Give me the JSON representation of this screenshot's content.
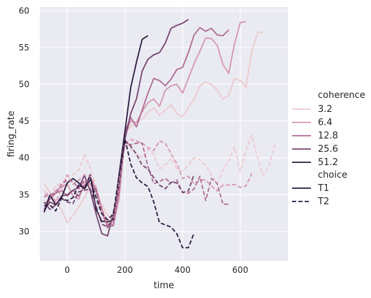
{
  "chart_data": {
    "type": "line",
    "xlabel": "time",
    "ylabel": "firing_rate",
    "xlim": [
      -95,
      765
    ],
    "ylim": [
      26.0,
      60.5
    ],
    "xticks": [
      "0",
      "200",
      "400",
      "600"
    ],
    "xtick_values": [
      0,
      200,
      400,
      600
    ],
    "yticks": [
      "30",
      "35",
      "40",
      "45",
      "50",
      "55",
      "60"
    ],
    "ytick_values": [
      30,
      35,
      40,
      45,
      50,
      55,
      60
    ],
    "grid": true,
    "legend_placement": "right-outside",
    "legend": {
      "hue_title": "coherence",
      "hue_entries": [
        {
          "label": "3.2",
          "color": "#ecc9cd"
        },
        {
          "label": "6.4",
          "color": "#d696ac"
        },
        {
          "label": "12.8",
          "color": "#b06a94"
        },
        {
          "label": "25.6",
          "color": "#754470"
        },
        {
          "label": "51.2",
          "color": "#2a1a3e"
        }
      ],
      "style_title": "choice",
      "style_entries": [
        {
          "label": "T1",
          "dash": "solid"
        },
        {
          "label": "T2",
          "dash": "dashed"
        }
      ]
    },
    "series": [
      {
        "coherence": "3.2",
        "choice": "T1",
        "color": "#ecc9cd",
        "dash": "solid",
        "x": [
          -80,
          -60,
          -40,
          -20,
          0,
          20,
          40,
          60,
          80,
          100,
          120,
          140,
          160,
          180,
          200,
          220,
          240,
          260,
          280,
          300,
          320,
          340,
          360,
          380,
          400,
          420,
          440,
          460,
          480,
          500,
          520,
          540,
          560,
          580,
          600,
          620,
          640,
          660,
          680
        ],
        "y": [
          36.5,
          35.3,
          34.2,
          33.0,
          31.2,
          32.2,
          33.3,
          34.6,
          36.2,
          35.3,
          33.6,
          32.2,
          31.5,
          36.5,
          43.5,
          44.2,
          44.8,
          45.3,
          46.2,
          46.8,
          45.8,
          46.5,
          47.2,
          46.0,
          45.6,
          46.8,
          48.0,
          49.8,
          50.3,
          50.0,
          49.2,
          48.0,
          48.5,
          50.8,
          50.5,
          49.6,
          54.5,
          57.0,
          57.1
        ]
      },
      {
        "coherence": "6.4",
        "choice": "T1",
        "color": "#d696ac",
        "dash": "solid",
        "x": [
          -80,
          -60,
          -40,
          -20,
          0,
          20,
          40,
          60,
          80,
          100,
          120,
          140,
          160,
          180,
          200,
          220,
          240,
          260,
          280,
          300,
          320,
          340,
          360,
          380,
          400,
          420,
          440,
          460,
          480,
          500,
          520,
          540,
          560,
          580,
          600,
          620
        ],
        "y": [
          33.7,
          34.5,
          35.6,
          36.0,
          36.5,
          34.8,
          34.4,
          36.8,
          36.4,
          35.6,
          33.0,
          31.0,
          30.9,
          34.5,
          43.0,
          45.0,
          44.8,
          46.3,
          47.5,
          48.0,
          47.0,
          49.2,
          49.8,
          50.0,
          48.8,
          50.8,
          52.8,
          54.5,
          56.3,
          56.2,
          55.3,
          52.7,
          51.5,
          55.5,
          58.4,
          58.5
        ]
      },
      {
        "coherence": "12.8",
        "choice": "T1",
        "color": "#b06a94",
        "dash": "solid",
        "x": [
          -80,
          -60,
          -40,
          -20,
          0,
          20,
          40,
          60,
          80,
          100,
          120,
          140,
          160,
          180,
          200,
          220,
          240,
          260,
          280,
          300,
          320,
          340,
          360,
          380,
          400,
          420,
          440,
          460,
          480,
          500,
          520,
          540,
          560
        ],
        "y": [
          33.0,
          34.4,
          35.2,
          35.6,
          34.8,
          35.6,
          34.8,
          36.2,
          37.4,
          35.4,
          32.6,
          30.6,
          30.8,
          35.6,
          43.5,
          45.5,
          44.2,
          46.5,
          48.8,
          50.8,
          50.5,
          49.8,
          50.7,
          52.0,
          52.3,
          54.3,
          56.7,
          57.7,
          57.2,
          57.6,
          56.7,
          56.6,
          57.4
        ]
      },
      {
        "coherence": "25.6",
        "choice": "T1",
        "color": "#754470",
        "dash": "solid",
        "x": [
          -80,
          -60,
          -40,
          -20,
          0,
          20,
          40,
          60,
          80,
          100,
          120,
          140,
          160,
          180,
          200,
          220,
          240,
          260,
          280,
          300,
          320,
          340,
          360,
          380,
          400,
          420
        ],
        "y": [
          32.8,
          34.0,
          33.6,
          34.8,
          35.0,
          35.6,
          36.0,
          37.6,
          35.5,
          32.4,
          29.7,
          29.4,
          32.6,
          36.5,
          42.5,
          46.0,
          48.0,
          51.8,
          53.4,
          54.0,
          54.3,
          55.6,
          57.6,
          58.0,
          58.3,
          58.8
        ]
      },
      {
        "coherence": "51.2",
        "choice": "T1",
        "color": "#2a1a3e",
        "dash": "solid",
        "x": [
          -80,
          -60,
          -40,
          -20,
          0,
          20,
          40,
          60,
          80,
          100,
          120,
          140,
          160,
          180,
          200,
          220,
          240,
          260,
          280
        ],
        "y": [
          32.6,
          35.0,
          33.6,
          34.6,
          36.6,
          37.2,
          36.6,
          35.8,
          37.7,
          33.0,
          31.4,
          31.3,
          31.6,
          37.8,
          43.6,
          49.5,
          53.0,
          56.1,
          56.6
        ]
      },
      {
        "coherence": "3.2",
        "choice": "T2",
        "color": "#ecc9cd",
        "dash": "dashed",
        "x": [
          -80,
          -60,
          -40,
          -20,
          0,
          20,
          40,
          60,
          80,
          100,
          120,
          140,
          160,
          180,
          200,
          220,
          240,
          260,
          280,
          300,
          320,
          340,
          360,
          380,
          400,
          420,
          440,
          460,
          480,
          500,
          520,
          540,
          560,
          580,
          600,
          620,
          640,
          660,
          680,
          700,
          720
        ],
        "y": [
          35.5,
          35.0,
          36.2,
          36.5,
          37.4,
          37.7,
          38.3,
          40.5,
          38.6,
          36.0,
          32.8,
          31.5,
          32.4,
          37.0,
          42.5,
          41.2,
          40.6,
          40.0,
          41.2,
          40.5,
          38.5,
          39.0,
          40.0,
          38.5,
          38.2,
          39.0,
          40.0,
          39.8,
          39.0,
          37.6,
          36.5,
          38.4,
          39.6,
          41.5,
          38.2,
          41.0,
          43.1,
          40.0,
          37.6,
          39.0,
          41.8
        ]
      },
      {
        "coherence": "6.4",
        "choice": "T2",
        "color": "#d696ac",
        "dash": "dashed",
        "x": [
          -80,
          -60,
          -40,
          -20,
          0,
          20,
          40,
          60,
          80,
          100,
          120,
          140,
          160,
          180,
          200,
          220,
          240,
          260,
          280,
          300,
          320,
          340,
          360,
          380,
          400,
          420,
          440,
          460,
          480,
          500,
          520,
          540,
          560,
          580,
          600,
          620,
          640
        ],
        "y": [
          35.0,
          35.2,
          34.0,
          35.8,
          37.7,
          36.4,
          37.0,
          37.7,
          37.5,
          36.0,
          33.2,
          30.5,
          31.4,
          36.2,
          42.0,
          42.5,
          42.3,
          42.0,
          41.4,
          41.0,
          42.3,
          42.0,
          40.6,
          39.2,
          37.2,
          37.5,
          36.5,
          37.0,
          37.0,
          36.2,
          35.5,
          36.3,
          36.3,
          36.4,
          36.0,
          36.2,
          37.9
        ]
      },
      {
        "coherence": "12.8",
        "choice": "T2",
        "color": "#b06a94",
        "dash": "dashed",
        "x": [
          -80,
          -60,
          -40,
          -20,
          0,
          20,
          40,
          60,
          80,
          100,
          120,
          140,
          160,
          180,
          200,
          220,
          240,
          260,
          280,
          300,
          320,
          340,
          360,
          380,
          400,
          420,
          440,
          460,
          480,
          500,
          520,
          540,
          560
        ],
        "y": [
          34.7,
          35.0,
          35.2,
          36.4,
          37.0,
          36.8,
          35.8,
          37.0,
          36.6,
          35.8,
          33.0,
          30.5,
          32.2,
          36.2,
          42.0,
          41.8,
          42.0,
          42.0,
          38.8,
          36.5,
          36.8,
          37.2,
          36.6,
          37.0,
          35.3,
          35.2,
          35.8,
          37.5,
          34.2,
          37.2,
          36.5,
          33.7,
          33.7
        ]
      },
      {
        "coherence": "25.6",
        "choice": "T2",
        "color": "#754470",
        "dash": "dashed",
        "x": [
          -80,
          -60,
          -40,
          -20,
          0,
          20,
          40,
          60,
          80,
          100,
          120,
          140,
          160,
          180,
          200,
          220,
          240,
          260,
          280,
          300,
          320,
          340,
          360,
          380,
          400,
          420,
          440
        ],
        "y": [
          34.0,
          33.0,
          33.6,
          34.5,
          34.0,
          33.8,
          35.4,
          35.6,
          35.8,
          33.5,
          31.0,
          30.6,
          32.0,
          36.4,
          42.3,
          41.6,
          40.5,
          39.0,
          38.5,
          37.3,
          36.3,
          35.8,
          36.7,
          36.6,
          35.3,
          35.5,
          37.8
        ]
      },
      {
        "coherence": "51.2",
        "choice": "T2",
        "color": "#2a1a3e",
        "dash": "dashed",
        "x": [
          -80,
          -60,
          -40,
          -20,
          0,
          20,
          40,
          60,
          80,
          100,
          120,
          140,
          160,
          180,
          200,
          220,
          240,
          260,
          280,
          300,
          320,
          340,
          360,
          380,
          400,
          420,
          440
        ],
        "y": [
          33.5,
          33.6,
          32.8,
          34.5,
          34.2,
          34.6,
          36.4,
          35.8,
          37.0,
          34.6,
          32.4,
          31.6,
          32.4,
          37.7,
          42.6,
          39.2,
          37.3,
          36.6,
          36.1,
          34.0,
          31.2,
          30.9,
          30.6,
          29.7,
          27.8,
          27.8,
          29.8
        ]
      }
    ]
  }
}
